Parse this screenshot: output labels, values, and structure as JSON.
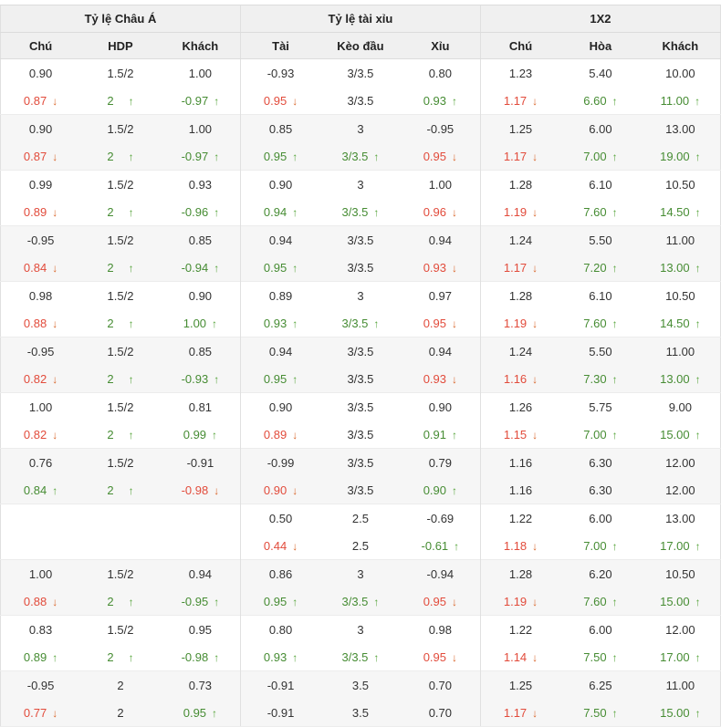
{
  "header": {
    "groups": [
      "Tỷ lệ Châu Á",
      "Tỷ lệ tài xỉu",
      "1X2"
    ],
    "columns": [
      "Chú",
      "HDP",
      "Khách",
      "Tài",
      "Kèo đầu",
      "Xỉu",
      "Chú",
      "Hòa",
      "Khách"
    ]
  },
  "icons": {
    "up": "↑",
    "down": "↓"
  },
  "colors": {
    "up_text": "#468c33",
    "up_arrow": "#55a43a",
    "down_text": "#e24b3b",
    "down_arrow": "#d9652a",
    "text": "#333333",
    "header_bg": "#f0f0f0",
    "band_bg": "#f6f6f6",
    "border": "#dcdcdc"
  },
  "table": {
    "rows": [
      [
        {
          "v": "0.90"
        },
        {
          "v": "1.5/2"
        },
        {
          "v": "1.00"
        },
        {
          "v": "-0.93"
        },
        {
          "v": "3/3.5"
        },
        {
          "v": "0.80"
        },
        {
          "v": "1.23"
        },
        {
          "v": "5.40"
        },
        {
          "v": "10.00"
        }
      ],
      [
        {
          "v": "0.87",
          "t": "down"
        },
        {
          "v": "2",
          "t": "up"
        },
        {
          "v": "-0.97",
          "t": "up"
        },
        {
          "v": "0.95",
          "t": "down"
        },
        {
          "v": "3/3.5"
        },
        {
          "v": "0.93",
          "t": "up"
        },
        {
          "v": "1.17",
          "t": "down"
        },
        {
          "v": "6.60",
          "t": "up"
        },
        {
          "v": "11.00",
          "t": "up"
        }
      ],
      [
        {
          "v": "0.90"
        },
        {
          "v": "1.5/2"
        },
        {
          "v": "1.00"
        },
        {
          "v": "0.85"
        },
        {
          "v": "3"
        },
        {
          "v": "-0.95"
        },
        {
          "v": "1.25"
        },
        {
          "v": "6.00"
        },
        {
          "v": "13.00"
        }
      ],
      [
        {
          "v": "0.87",
          "t": "down"
        },
        {
          "v": "2",
          "t": "up"
        },
        {
          "v": "-0.97",
          "t": "up"
        },
        {
          "v": "0.95",
          "t": "up"
        },
        {
          "v": "3/3.5",
          "t": "up"
        },
        {
          "v": "0.95",
          "t": "down"
        },
        {
          "v": "1.17",
          "t": "down"
        },
        {
          "v": "7.00",
          "t": "up"
        },
        {
          "v": "19.00",
          "t": "up"
        }
      ],
      [
        {
          "v": "0.99"
        },
        {
          "v": "1.5/2"
        },
        {
          "v": "0.93"
        },
        {
          "v": "0.90"
        },
        {
          "v": "3"
        },
        {
          "v": "1.00"
        },
        {
          "v": "1.28"
        },
        {
          "v": "6.10"
        },
        {
          "v": "10.50"
        }
      ],
      [
        {
          "v": "0.89",
          "t": "down"
        },
        {
          "v": "2",
          "t": "up"
        },
        {
          "v": "-0.96",
          "t": "up"
        },
        {
          "v": "0.94",
          "t": "up"
        },
        {
          "v": "3/3.5",
          "t": "up"
        },
        {
          "v": "0.96",
          "t": "down"
        },
        {
          "v": "1.19",
          "t": "down"
        },
        {
          "v": "7.60",
          "t": "up"
        },
        {
          "v": "14.50",
          "t": "up"
        }
      ],
      [
        {
          "v": "-0.95"
        },
        {
          "v": "1.5/2"
        },
        {
          "v": "0.85"
        },
        {
          "v": "0.94"
        },
        {
          "v": "3/3.5"
        },
        {
          "v": "0.94"
        },
        {
          "v": "1.24"
        },
        {
          "v": "5.50"
        },
        {
          "v": "11.00"
        }
      ],
      [
        {
          "v": "0.84",
          "t": "down"
        },
        {
          "v": "2",
          "t": "up"
        },
        {
          "v": "-0.94",
          "t": "up"
        },
        {
          "v": "0.95",
          "t": "up"
        },
        {
          "v": "3/3.5"
        },
        {
          "v": "0.93",
          "t": "down"
        },
        {
          "v": "1.17",
          "t": "down"
        },
        {
          "v": "7.20",
          "t": "up"
        },
        {
          "v": "13.00",
          "t": "up"
        }
      ],
      [
        {
          "v": "0.98"
        },
        {
          "v": "1.5/2"
        },
        {
          "v": "0.90"
        },
        {
          "v": "0.89"
        },
        {
          "v": "3"
        },
        {
          "v": "0.97"
        },
        {
          "v": "1.28"
        },
        {
          "v": "6.10"
        },
        {
          "v": "10.50"
        }
      ],
      [
        {
          "v": "0.88",
          "t": "down"
        },
        {
          "v": "2",
          "t": "up"
        },
        {
          "v": "1.00",
          "t": "up"
        },
        {
          "v": "0.93",
          "t": "up"
        },
        {
          "v": "3/3.5",
          "t": "up"
        },
        {
          "v": "0.95",
          "t": "down"
        },
        {
          "v": "1.19",
          "t": "down"
        },
        {
          "v": "7.60",
          "t": "up"
        },
        {
          "v": "14.50",
          "t": "up"
        }
      ],
      [
        {
          "v": "-0.95"
        },
        {
          "v": "1.5/2"
        },
        {
          "v": "0.85"
        },
        {
          "v": "0.94"
        },
        {
          "v": "3/3.5"
        },
        {
          "v": "0.94"
        },
        {
          "v": "1.24"
        },
        {
          "v": "5.50"
        },
        {
          "v": "11.00"
        }
      ],
      [
        {
          "v": "0.82",
          "t": "down"
        },
        {
          "v": "2",
          "t": "up"
        },
        {
          "v": "-0.93",
          "t": "up"
        },
        {
          "v": "0.95",
          "t": "up"
        },
        {
          "v": "3/3.5"
        },
        {
          "v": "0.93",
          "t": "down"
        },
        {
          "v": "1.16",
          "t": "down"
        },
        {
          "v": "7.30",
          "t": "up"
        },
        {
          "v": "13.00",
          "t": "up"
        }
      ],
      [
        {
          "v": "1.00"
        },
        {
          "v": "1.5/2"
        },
        {
          "v": "0.81"
        },
        {
          "v": "0.90"
        },
        {
          "v": "3/3.5"
        },
        {
          "v": "0.90"
        },
        {
          "v": "1.26"
        },
        {
          "v": "5.75"
        },
        {
          "v": "9.00"
        }
      ],
      [
        {
          "v": "0.82",
          "t": "down"
        },
        {
          "v": "2",
          "t": "up"
        },
        {
          "v": "0.99",
          "t": "up"
        },
        {
          "v": "0.89",
          "t": "down"
        },
        {
          "v": "3/3.5"
        },
        {
          "v": "0.91",
          "t": "up"
        },
        {
          "v": "1.15",
          "t": "down"
        },
        {
          "v": "7.00",
          "t": "up"
        },
        {
          "v": "15.00",
          "t": "up"
        }
      ],
      [
        {
          "v": "0.76"
        },
        {
          "v": "1.5/2"
        },
        {
          "v": "-0.91"
        },
        {
          "v": "-0.99"
        },
        {
          "v": "3/3.5"
        },
        {
          "v": "0.79"
        },
        {
          "v": "1.16"
        },
        {
          "v": "6.30"
        },
        {
          "v": "12.00"
        }
      ],
      [
        {
          "v": "0.84",
          "t": "up"
        },
        {
          "v": "2",
          "t": "up"
        },
        {
          "v": "-0.98",
          "t": "down"
        },
        {
          "v": "0.90",
          "t": "down"
        },
        {
          "v": "3/3.5"
        },
        {
          "v": "0.90",
          "t": "up"
        },
        {
          "v": "1.16"
        },
        {
          "v": "6.30"
        },
        {
          "v": "12.00"
        }
      ],
      [
        {
          "v": ""
        },
        {
          "v": ""
        },
        {
          "v": ""
        },
        {
          "v": "0.50"
        },
        {
          "v": "2.5"
        },
        {
          "v": "-0.69"
        },
        {
          "v": "1.22"
        },
        {
          "v": "6.00"
        },
        {
          "v": "13.00"
        }
      ],
      [
        {
          "v": ""
        },
        {
          "v": ""
        },
        {
          "v": ""
        },
        {
          "v": "0.44",
          "t": "down"
        },
        {
          "v": "2.5"
        },
        {
          "v": "-0.61",
          "t": "up"
        },
        {
          "v": "1.18",
          "t": "down"
        },
        {
          "v": "7.00",
          "t": "up"
        },
        {
          "v": "17.00",
          "t": "up"
        }
      ],
      [
        {
          "v": "1.00"
        },
        {
          "v": "1.5/2"
        },
        {
          "v": "0.94"
        },
        {
          "v": "0.86"
        },
        {
          "v": "3"
        },
        {
          "v": "-0.94"
        },
        {
          "v": "1.28"
        },
        {
          "v": "6.20"
        },
        {
          "v": "10.50"
        }
      ],
      [
        {
          "v": "0.88",
          "t": "down"
        },
        {
          "v": "2",
          "t": "up"
        },
        {
          "v": "-0.95",
          "t": "up"
        },
        {
          "v": "0.95",
          "t": "up"
        },
        {
          "v": "3/3.5",
          "t": "up"
        },
        {
          "v": "0.95",
          "t": "down"
        },
        {
          "v": "1.19",
          "t": "down"
        },
        {
          "v": "7.60",
          "t": "up"
        },
        {
          "v": "15.00",
          "t": "up"
        }
      ],
      [
        {
          "v": "0.83"
        },
        {
          "v": "1.5/2"
        },
        {
          "v": "0.95"
        },
        {
          "v": "0.80"
        },
        {
          "v": "3"
        },
        {
          "v": "0.98"
        },
        {
          "v": "1.22"
        },
        {
          "v": "6.00"
        },
        {
          "v": "12.00"
        }
      ],
      [
        {
          "v": "0.89",
          "t": "up"
        },
        {
          "v": "2",
          "t": "up"
        },
        {
          "v": "-0.98",
          "t": "up"
        },
        {
          "v": "0.93",
          "t": "up"
        },
        {
          "v": "3/3.5",
          "t": "up"
        },
        {
          "v": "0.95",
          "t": "down"
        },
        {
          "v": "1.14",
          "t": "down"
        },
        {
          "v": "7.50",
          "t": "up"
        },
        {
          "v": "17.00",
          "t": "up"
        }
      ],
      [
        {
          "v": "-0.95"
        },
        {
          "v": "2"
        },
        {
          "v": "0.73"
        },
        {
          "v": "-0.91"
        },
        {
          "v": "3.5"
        },
        {
          "v": "0.70"
        },
        {
          "v": "1.25"
        },
        {
          "v": "6.25"
        },
        {
          "v": "11.00"
        }
      ],
      [
        {
          "v": "0.77",
          "t": "down"
        },
        {
          "v": "2"
        },
        {
          "v": "0.95",
          "t": "up"
        },
        {
          "v": "-0.91"
        },
        {
          "v": "3.5"
        },
        {
          "v": "0.70"
        },
        {
          "v": "1.17",
          "t": "down"
        },
        {
          "v": "7.50",
          "t": "up"
        },
        {
          "v": "15.00",
          "t": "up"
        }
      ]
    ]
  }
}
